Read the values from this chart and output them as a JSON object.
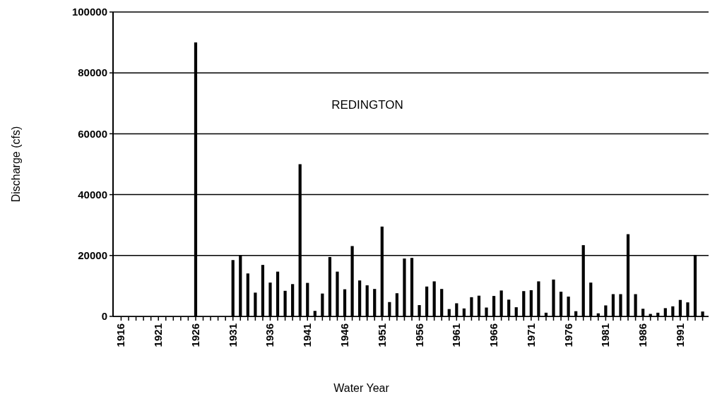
{
  "chart_data": {
    "type": "bar",
    "xlabel": "Water Year",
    "ylabel": "Discharge (cfs)",
    "annotations": [
      "REDINGTON"
    ],
    "categories": [
      "1916",
      null,
      null,
      null,
      null,
      "1921",
      null,
      null,
      null,
      null,
      "1926",
      null,
      null,
      null,
      null,
      "1931",
      null,
      null,
      null,
      null,
      "1936",
      null,
      null,
      null,
      null,
      "1941",
      null,
      null,
      null,
      null,
      "1946",
      null,
      null,
      null,
      null,
      "1951",
      null,
      null,
      null,
      null,
      "1956",
      null,
      null,
      null,
      null,
      "1961",
      null,
      null,
      null,
      null,
      "1966",
      null,
      null,
      null,
      null,
      "1971",
      null,
      null,
      null,
      null,
      "1976",
      null,
      null,
      null,
      null,
      "1981",
      null,
      null,
      null,
      null,
      "1986",
      null,
      null,
      null,
      null,
      "1991",
      null,
      null,
      null
    ],
    "values": [
      null,
      null,
      null,
      null,
      null,
      null,
      null,
      null,
      null,
      null,
      90000,
      null,
      null,
      null,
      null,
      18500,
      20000,
      14100,
      7800,
      16900,
      11100,
      14700,
      8400,
      10600,
      50000,
      11000,
      1800,
      7500,
      19500,
      14700,
      8900,
      23100,
      11800,
      10200,
      9000,
      29500,
      4700,
      7600,
      19000,
      19200,
      3700,
      9800,
      11500,
      9000,
      2400,
      4300,
      2600,
      6300,
      6800,
      2900,
      6700,
      8500,
      5500,
      3000,
      8300,
      8600,
      11500,
      1200,
      12100,
      8100,
      6500,
      1700,
      23400,
      11100,
      1000,
      3600,
      7300,
      7300,
      27000,
      7300,
      2500,
      800,
      1200,
      2700,
      3300,
      5400,
      4600,
      20200,
      1600
    ],
    "color": "#000000",
    "ylim": [
      0,
      100000
    ],
    "yticks": [
      0,
      20000,
      40000,
      60000,
      80000,
      100000
    ],
    "grid": "y"
  }
}
